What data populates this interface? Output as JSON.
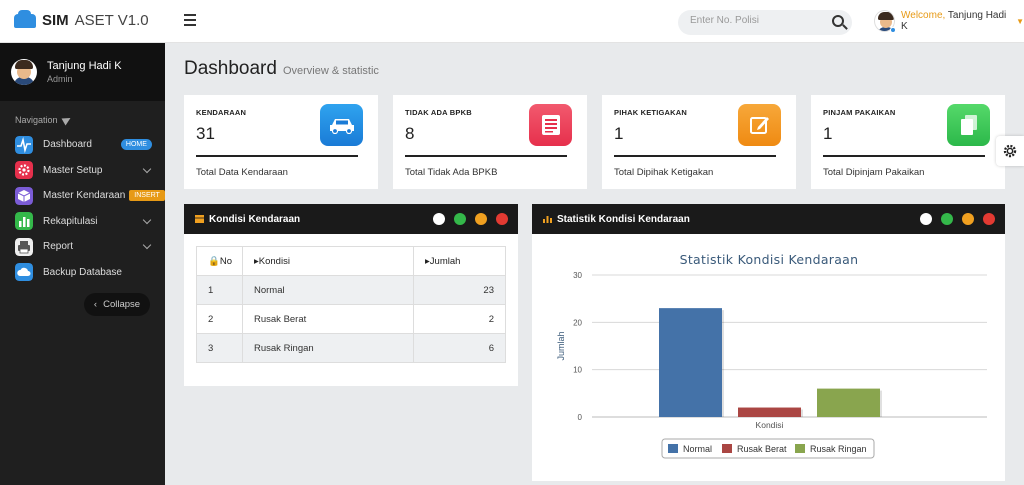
{
  "brand": {
    "name_bold": "SIM",
    "name_rest": " ASET V1.0"
  },
  "search": {
    "placeholder": "Enter No. Polisi"
  },
  "user": {
    "welcome": "Welcome",
    "sep": ",",
    "name": "Tanjung Hadi K"
  },
  "sidebar": {
    "profile_name": "Tanjung Hadi K",
    "profile_role": "Admin",
    "nav_title": "Navigation",
    "items": [
      {
        "label": "Dashboard",
        "badge": "HOME",
        "icon": "pulse-icon",
        "color": "#2f8ee0"
      },
      {
        "label": "Master Setup",
        "icon": "gear-icon",
        "color": "#e6304c"
      },
      {
        "label": "Master Kendaraan",
        "badge": "INSERT",
        "icon": "cube-icon",
        "color": "#7b5cd6"
      },
      {
        "label": "Rekapitulasi",
        "icon": "bar-chart-icon",
        "color": "#34b84a"
      },
      {
        "label": "Report",
        "icon": "printer-icon",
        "color": "#eeeeee"
      },
      {
        "label": "Backup Database",
        "icon": "cloud-icon",
        "color": "#2f8ee0"
      }
    ],
    "collapse_label": "Collapse"
  },
  "page": {
    "title": "Dashboard",
    "subtitle": "Overview & statistic"
  },
  "stats": [
    {
      "label": "KENDARAAN",
      "value": "31",
      "footer": "Total Data Kendaraan",
      "icon": "car-icon"
    },
    {
      "label": "TIDAK ADA BPKB",
      "value": "8",
      "footer": "Total Tidak Ada BPKB",
      "icon": "document-icon"
    },
    {
      "label": "PIHAK KETIGAKAN",
      "value": "1",
      "footer": "Total Dipihak Ketigakan",
      "icon": "edit-icon"
    },
    {
      "label": "PINJAM PAKAIKAN",
      "value": "1",
      "footer": "Total Dipinjam Pakaikan",
      "icon": "copy-icon"
    }
  ],
  "kondisi_panel": {
    "title": "Kondisi Kendaraan",
    "columns": [
      "No",
      "Kondisi",
      "Jumlah"
    ],
    "rows": [
      {
        "no": "1",
        "kondisi": "Normal",
        "jumlah": "23"
      },
      {
        "no": "2",
        "kondisi": "Rusak Berat",
        "jumlah": "2"
      },
      {
        "no": "3",
        "kondisi": "Rusak Ringan",
        "jumlah": "6"
      }
    ]
  },
  "chart_panel": {
    "title": "Statistik Kondisi Kendaraan"
  },
  "chart_data": {
    "type": "bar",
    "title": "Statistik Kondisi Kendaraan",
    "xlabel": "",
    "ylabel": "Jumlah",
    "categories": [
      "Kondisi"
    ],
    "series": [
      {
        "name": "Normal",
        "values": [
          23
        ],
        "color": "#4472a8"
      },
      {
        "name": "Rusak Berat",
        "values": [
          2
        ],
        "color": "#aa4643"
      },
      {
        "name": "Rusak Ringan",
        "values": [
          6
        ],
        "color": "#89a54e"
      }
    ],
    "ylim": [
      0,
      30
    ],
    "yticks": [
      0,
      10,
      20,
      30
    ],
    "legend": "bottom-center",
    "grid": true
  }
}
